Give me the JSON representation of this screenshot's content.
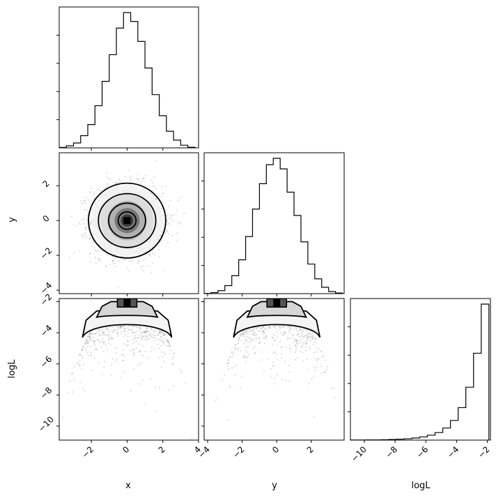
{
  "chart_data": {
    "type": "corner",
    "variables": [
      "x",
      "y",
      "logL"
    ],
    "axis_labels": {
      "x": "x",
      "y": "y",
      "logL": "logL"
    },
    "ranges": {
      "x": [
        -3.8,
        4.0
      ],
      "y": [
        -4.2,
        3.9
      ],
      "logL": [
        -10.9,
        -1.8
      ]
    },
    "ticks": {
      "x": [
        -2,
        0,
        2,
        4
      ],
      "y": [
        -4,
        -2,
        0,
        2
      ],
      "y_diag": [
        -4,
        -2,
        0,
        2
      ],
      "logL_row": [
        -10,
        -8,
        -6,
        -4,
        -2
      ],
      "logL_diag": [
        -10,
        -8,
        -6,
        -4,
        -2
      ]
    },
    "histograms": {
      "x": {
        "bin_edges": [
          -3.8,
          -3.4,
          -3.0,
          -2.6,
          -2.2,
          -1.8,
          -1.4,
          -1.0,
          -0.6,
          -0.2,
          0.2,
          0.6,
          1.0,
          1.4,
          1.8,
          2.2,
          2.6,
          3.0,
          3.4,
          3.8
        ],
        "counts": [
          2,
          9,
          22,
          55,
          105,
          190,
          300,
          420,
          540,
          610,
          570,
          480,
          360,
          240,
          145,
          75,
          35,
          12,
          3
        ]
      },
      "y": {
        "bin_edges": [
          -4.2,
          -3.8,
          -3.4,
          -3.0,
          -2.6,
          -2.2,
          -1.8,
          -1.4,
          -1.0,
          -0.6,
          -0.2,
          0.2,
          0.6,
          1.0,
          1.4,
          1.8,
          2.2,
          2.6,
          3.0,
          3.4,
          3.8
        ],
        "counts": [
          1,
          5,
          14,
          38,
          85,
          160,
          270,
          400,
          520,
          610,
          640,
          590,
          480,
          370,
          245,
          140,
          70,
          30,
          10,
          3
        ]
      },
      "logL": {
        "bin_edges": [
          -10.9,
          -10.4,
          -9.9,
          -9.4,
          -8.9,
          -8.4,
          -7.9,
          -7.4,
          -6.9,
          -6.4,
          -5.9,
          -5.4,
          -4.9,
          -4.4,
          -3.9,
          -3.4,
          -2.9,
          -2.4,
          -1.9
        ],
        "counts": [
          1,
          1,
          2,
          3,
          5,
          8,
          12,
          18,
          28,
          42,
          65,
          100,
          160,
          260,
          430,
          700,
          1150,
          1800
        ]
      }
    },
    "contour_levels": [
      0.118,
      0.393,
      0.675,
      0.864
    ],
    "grid": false,
    "legend": "none"
  }
}
